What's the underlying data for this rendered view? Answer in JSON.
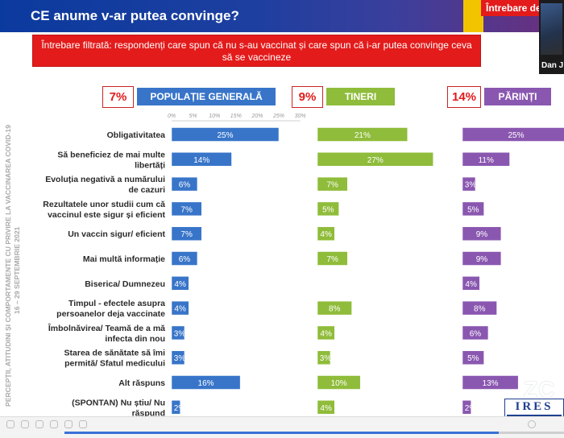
{
  "header": {
    "title": "CE anume v-ar putea convinge?",
    "question_tab": "Întrebare de"
  },
  "webcam": {
    "name": "Dan J"
  },
  "filter_banner": "Întrebare filtrată: respondenți care spun că nu s-au vaccinat și care spun că i-ar putea convinge ceva să se vaccineze",
  "side_caption": "PERCEPȚII, ATITUDINI ȘI COMPORTAMENTE CU PRIVIRE LA VACCINAREA COVID-19",
  "side_dates": "16 – 29 SEPTEMBRIE 2021",
  "colors": {
    "blue": "#3875c9",
    "green": "#8fbc3a",
    "purple": "#8a57b0",
    "red": "#e31b1b"
  },
  "groups": [
    {
      "pct": "7%",
      "label": "POPULAȚIE GENERALĂ"
    },
    {
      "pct": "9%",
      "label": "TINERI"
    },
    {
      "pct": "14%",
      "label": "PĂRINȚI"
    }
  ],
  "axis_ticks": [
    "0%",
    "5%",
    "10%",
    "15%",
    "20%",
    "25%",
    "30%"
  ],
  "chart_data": {
    "type": "bar",
    "orientation": "horizontal",
    "categories": [
      "Obligativitatea",
      "Să beneficiez de mai multe libertăți",
      "Evoluția negativă a numărului de cazuri",
      "Rezultatele unor studii cum că vaccinul este sigur și eficient",
      "Un vaccin sigur/ eficient",
      "Mai multă informație",
      "Biserica/ Dumnezeu",
      "Timpul - efectele asupra persoanelor deja vaccinate",
      "Îmbolnăvirea/ Teamă de a mă infecta din nou",
      "Starea de sănătate să îmi permită/ Sfatul medicului",
      "Alt răspuns",
      "(SPONTAN) Nu știu/ Nu răspund"
    ],
    "category_lines": [
      [
        "Obligativitatea"
      ],
      [
        "Să beneficiez de mai multe",
        "libertăți"
      ],
      [
        "Evoluția negativă a numărului",
        "de cazuri"
      ],
      [
        "Rezultatele unor studii cum că",
        "vaccinul este sigur și eficient"
      ],
      [
        "Un vaccin sigur/ eficient"
      ],
      [
        "Mai multă informație"
      ],
      [
        "Biserica/ Dumnezeu"
      ],
      [
        "Timpul - efectele asupra",
        "persoanelor deja vaccinate"
      ],
      [
        "Îmbolnăvirea/ Teamă de a mă",
        "infecta din nou"
      ],
      [
        "Starea de sănătate să îmi",
        "permită/ Sfatul medicului"
      ],
      [
        "Alt răspuns"
      ],
      [
        "(SPONTAN) Nu știu/ Nu",
        "răspund"
      ]
    ],
    "series": [
      {
        "name": "POPULAȚIE GENERALĂ",
        "values": [
          25,
          14,
          6,
          7,
          7,
          6,
          4,
          4,
          3,
          3,
          16,
          2
        ]
      },
      {
        "name": "TINERI",
        "values": [
          21,
          27,
          7,
          5,
          4,
          7,
          null,
          8,
          4,
          3,
          10,
          4
        ]
      },
      {
        "name": "PĂRINȚI",
        "values": [
          25,
          11,
          3,
          5,
          9,
          9,
          4,
          8,
          6,
          5,
          13,
          2
        ]
      }
    ],
    "xlim": [
      0,
      30
    ],
    "grid": false,
    "legend": "top"
  },
  "toolbar": {
    "progress": 0.87
  },
  "logos": {
    "zc": "ZC",
    "ires": "IRES"
  }
}
